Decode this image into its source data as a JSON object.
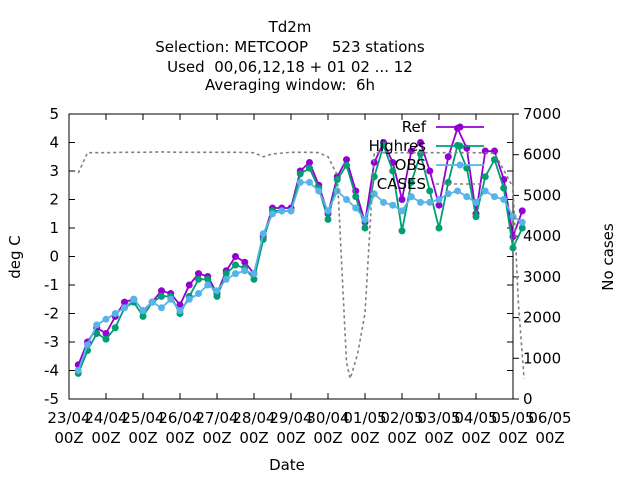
{
  "chart_data": {
    "type": "line",
    "title_lines": [
      "Td2m",
      "Selection: METCOOP     523 stations",
      "Used  00,06,12,18 + 01 02 ... 12",
      "Averaging window:  6h"
    ],
    "xlabel": "Date",
    "ylabel": "deg C",
    "y2label": "No cases",
    "xlim": [
      0,
      24
    ],
    "ylim": [
      -5,
      5
    ],
    "y2lim": [
      0,
      7000
    ],
    "yticks": [
      -5,
      -4,
      -3,
      -2,
      -1,
      0,
      1,
      2,
      3,
      4,
      5
    ],
    "y2ticks": [
      0,
      1000,
      2000,
      3000,
      4000,
      5000,
      6000,
      7000
    ],
    "x_tick_labels": [
      {
        "x": 0,
        "lines": [
          "23/04",
          "00Z"
        ]
      },
      {
        "x": 2,
        "lines": [
          "24/04",
          "00Z"
        ]
      },
      {
        "x": 4,
        "lines": [
          "25/04",
          "00Z"
        ]
      },
      {
        "x": 6,
        "lines": [
          "26/04",
          "00Z"
        ]
      },
      {
        "x": 8,
        "lines": [
          "27/04",
          "00Z"
        ]
      },
      {
        "x": 10,
        "lines": [
          "28/04",
          "00Z"
        ]
      },
      {
        "x": 12,
        "lines": [
          "29/04",
          "00Z"
        ]
      },
      {
        "x": 14,
        "lines": [
          "30/04",
          "00Z"
        ]
      },
      {
        "x": 16,
        "lines": [
          "01/05",
          "00Z"
        ]
      },
      {
        "x": 18,
        "lines": [
          "02/05",
          "00Z"
        ]
      },
      {
        "x": 20,
        "lines": [
          "03/05",
          "00Z"
        ]
      },
      {
        "x": 22,
        "lines": [
          "04/05",
          "00Z"
        ]
      },
      {
        "x": 24,
        "lines": [
          "05/05",
          "00Z"
        ]
      },
      {
        "x": 26,
        "lines": [
          "06/05",
          "00Z"
        ]
      }
    ],
    "legend_position": "top-right",
    "series": [
      {
        "name": "Ref",
        "color": "#9400d3",
        "marker": "circle",
        "axis": "y1",
        "points": [
          [
            0.5,
            -3.8
          ],
          [
            1,
            -3
          ],
          [
            1.5,
            -2.5
          ],
          [
            2,
            -2.7
          ],
          [
            2.5,
            -2.1
          ],
          [
            3,
            -1.6
          ],
          [
            3.5,
            -1.5
          ],
          [
            4,
            -1.9
          ],
          [
            4.5,
            -1.6
          ],
          [
            5,
            -1.2
          ],
          [
            5.5,
            -1.3
          ],
          [
            6,
            -1.7
          ],
          [
            6.5,
            -1
          ],
          [
            7,
            -0.6
          ],
          [
            7.5,
            -0.7
          ],
          [
            8,
            -1.3
          ],
          [
            8.5,
            -0.5
          ],
          [
            9,
            0
          ],
          [
            9.5,
            -0.2
          ],
          [
            10,
            -0.6
          ],
          [
            10.5,
            0.7
          ],
          [
            11,
            1.7
          ],
          [
            11.5,
            1.7
          ],
          [
            12,
            1.7
          ],
          [
            12.5,
            3
          ],
          [
            13,
            3.3
          ],
          [
            13.5,
            2.5
          ],
          [
            14,
            1.5
          ],
          [
            14.5,
            2.8
          ],
          [
            15,
            3.4
          ],
          [
            15.5,
            2.3
          ],
          [
            16,
            1.2
          ],
          [
            16.5,
            3.3
          ],
          [
            17,
            4
          ],
          [
            17.5,
            3.3
          ],
          [
            18,
            2
          ],
          [
            18.5,
            3.7
          ],
          [
            19,
            4
          ],
          [
            19.5,
            3
          ],
          [
            20,
            1.8
          ],
          [
            20.5,
            3.5
          ],
          [
            21,
            4.5
          ],
          [
            21.5,
            3.8
          ],
          [
            22,
            1.5
          ],
          [
            22.5,
            3.7
          ],
          [
            23,
            3.7
          ],
          [
            23.5,
            2.7
          ],
          [
            24,
            0.7
          ],
          [
            24.5,
            1.6
          ]
        ]
      },
      {
        "name": "Highres",
        "color": "#009e73",
        "marker": "circle",
        "axis": "y1",
        "points": [
          [
            0.5,
            -4.1
          ],
          [
            1,
            -3.3
          ],
          [
            1.5,
            -2.7
          ],
          [
            2,
            -2.9
          ],
          [
            2.5,
            -2.5
          ],
          [
            3,
            -1.8
          ],
          [
            3.5,
            -1.6
          ],
          [
            4,
            -2.1
          ],
          [
            4.5,
            -1.6
          ],
          [
            5,
            -1.4
          ],
          [
            5.5,
            -1.4
          ],
          [
            6,
            -2
          ],
          [
            6.5,
            -1.4
          ],
          [
            7,
            -0.8
          ],
          [
            7.5,
            -0.8
          ],
          [
            8,
            -1.4
          ],
          [
            8.5,
            -0.6
          ],
          [
            9,
            -0.3
          ],
          [
            9.5,
            -0.4
          ],
          [
            10,
            -0.8
          ],
          [
            10.5,
            0.6
          ],
          [
            11,
            1.6
          ],
          [
            11.5,
            1.6
          ],
          [
            12,
            1.6
          ],
          [
            12.5,
            2.9
          ],
          [
            13,
            3.1
          ],
          [
            13.5,
            2.4
          ],
          [
            14,
            1.3
          ],
          [
            14.5,
            2.7
          ],
          [
            15,
            3.2
          ],
          [
            15.5,
            2.1
          ],
          [
            16,
            1
          ],
          [
            16.5,
            2.8
          ],
          [
            17,
            3.9
          ],
          [
            17.5,
            3
          ],
          [
            18,
            0.9
          ],
          [
            18.5,
            2.6
          ],
          [
            19,
            3.6
          ],
          [
            19.5,
            2.3
          ],
          [
            20,
            1
          ],
          [
            20.5,
            2.6
          ],
          [
            21,
            3.9
          ],
          [
            21.5,
            3.1
          ],
          [
            22,
            1.4
          ],
          [
            22.5,
            2.8
          ],
          [
            23,
            3.4
          ],
          [
            23.5,
            2.4
          ],
          [
            24,
            0.3
          ],
          [
            24.5,
            1
          ]
        ]
      },
      {
        "name": "OBS",
        "color": "#56b4e9",
        "marker": "circle",
        "axis": "y1",
        "points": [
          [
            0.5,
            -4
          ],
          [
            1,
            -3.1
          ],
          [
            1.5,
            -2.4
          ],
          [
            2,
            -2.2
          ],
          [
            2.5,
            -2
          ],
          [
            3,
            -1.8
          ],
          [
            3.5,
            -1.5
          ],
          [
            4,
            -1.9
          ],
          [
            4.5,
            -1.6
          ],
          [
            5,
            -1.8
          ],
          [
            5.5,
            -1.5
          ],
          [
            6,
            -1.9
          ],
          [
            6.5,
            -1.5
          ],
          [
            7,
            -1.3
          ],
          [
            7.5,
            -1
          ],
          [
            8,
            -1.2
          ],
          [
            8.5,
            -0.8
          ],
          [
            9,
            -0.6
          ],
          [
            9.5,
            -0.5
          ],
          [
            10,
            -0.6
          ],
          [
            10.5,
            0.8
          ],
          [
            11,
            1.5
          ],
          [
            11.5,
            1.6
          ],
          [
            12,
            1.6
          ],
          [
            12.5,
            2.6
          ],
          [
            13,
            2.6
          ],
          [
            13.5,
            2.3
          ],
          [
            14,
            1.6
          ],
          [
            14.5,
            2.3
          ],
          [
            15,
            2
          ],
          [
            15.5,
            1.7
          ],
          [
            16,
            1.3
          ],
          [
            16.5,
            2.2
          ],
          [
            17,
            1.9
          ],
          [
            17.5,
            1.8
          ],
          [
            18,
            1.6
          ],
          [
            18.5,
            2.1
          ],
          [
            19,
            1.9
          ],
          [
            19.5,
            1.9
          ],
          [
            20,
            2
          ],
          [
            20.5,
            2.2
          ],
          [
            21,
            2.3
          ],
          [
            21.5,
            2.1
          ],
          [
            22,
            1.9
          ],
          [
            22.5,
            2.3
          ],
          [
            23,
            2.1
          ],
          [
            23.5,
            2
          ],
          [
            24,
            1.4
          ],
          [
            24.5,
            1.2
          ]
        ]
      },
      {
        "name": "CASES",
        "color": "#808080",
        "marker": "none",
        "dashed": true,
        "axis": "y2",
        "points": [
          [
            0.5,
            5550
          ],
          [
            1,
            6050
          ],
          [
            2,
            6050
          ],
          [
            3,
            6060
          ],
          [
            4,
            6060
          ],
          [
            5,
            6070
          ],
          [
            6,
            6060
          ],
          [
            7,
            6060
          ],
          [
            8,
            6060
          ],
          [
            9,
            6060
          ],
          [
            10,
            6050
          ],
          [
            10.5,
            5950
          ],
          [
            11,
            6020
          ],
          [
            12,
            6060
          ],
          [
            13,
            6060
          ],
          [
            13.5,
            6050
          ],
          [
            14,
            5950
          ],
          [
            14.5,
            5500
          ],
          [
            15,
            900
          ],
          [
            15.2,
            500
          ],
          [
            15.6,
            1100
          ],
          [
            16,
            2100
          ],
          [
            16.5,
            6050
          ],
          [
            17,
            6050
          ],
          [
            18,
            6050
          ],
          [
            19,
            6050
          ],
          [
            20,
            6050
          ],
          [
            21,
            6050
          ],
          [
            22,
            6050
          ],
          [
            23,
            6040
          ],
          [
            24,
            5200
          ],
          [
            24.3,
            2300
          ],
          [
            24.6,
            500
          ]
        ]
      }
    ]
  }
}
